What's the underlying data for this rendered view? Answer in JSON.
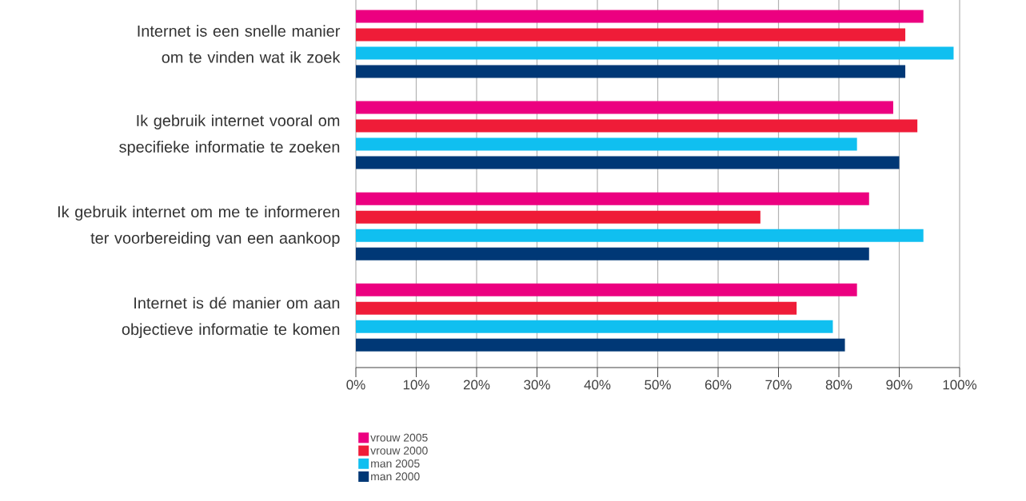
{
  "chart_data": {
    "type": "bar",
    "orientation": "horizontal",
    "categories": [
      "Internet is een snelle manier om te vinden wat ik zoek",
      "Ik gebruik internet vooral om specifieke informatie te zoeken",
      "Ik gebruik internet om me te informeren ter voorbereiding van een aankoop",
      "Internet is dé manier om aan objectieve informatie te komen"
    ],
    "series": [
      {
        "name": "vrouw 2005",
        "color": "#ec0080",
        "values": [
          94,
          89,
          85,
          83
        ]
      },
      {
        "name": "vrouw 2000",
        "color": "#ef1c38",
        "values": [
          91,
          93,
          67,
          73
        ]
      },
      {
        "name": "man 2005",
        "color": "#10bff0",
        "values": [
          99,
          83,
          94,
          79
        ]
      },
      {
        "name": "man 2000",
        "color": "#003876",
        "values": [
          91,
          90,
          85,
          81
        ]
      }
    ],
    "xlim": [
      0,
      100
    ],
    "xticks": [
      {
        "value": 0,
        "label": "0%"
      },
      {
        "value": 10,
        "label": "10%"
      },
      {
        "value": 20,
        "label": "20%"
      },
      {
        "value": 30,
        "label": "30%"
      },
      {
        "value": 40,
        "label": "40%"
      },
      {
        "value": 50,
        "label": "50%"
      },
      {
        "value": 60,
        "label": "60%"
      },
      {
        "value": 70,
        "label": "70%"
      },
      {
        "value": 80,
        "label": "80%"
      },
      {
        "value": 90,
        "label": "90%"
      },
      {
        "value": 100,
        "label": "100%"
      }
    ],
    "grid": "x",
    "legend": "bottom"
  }
}
